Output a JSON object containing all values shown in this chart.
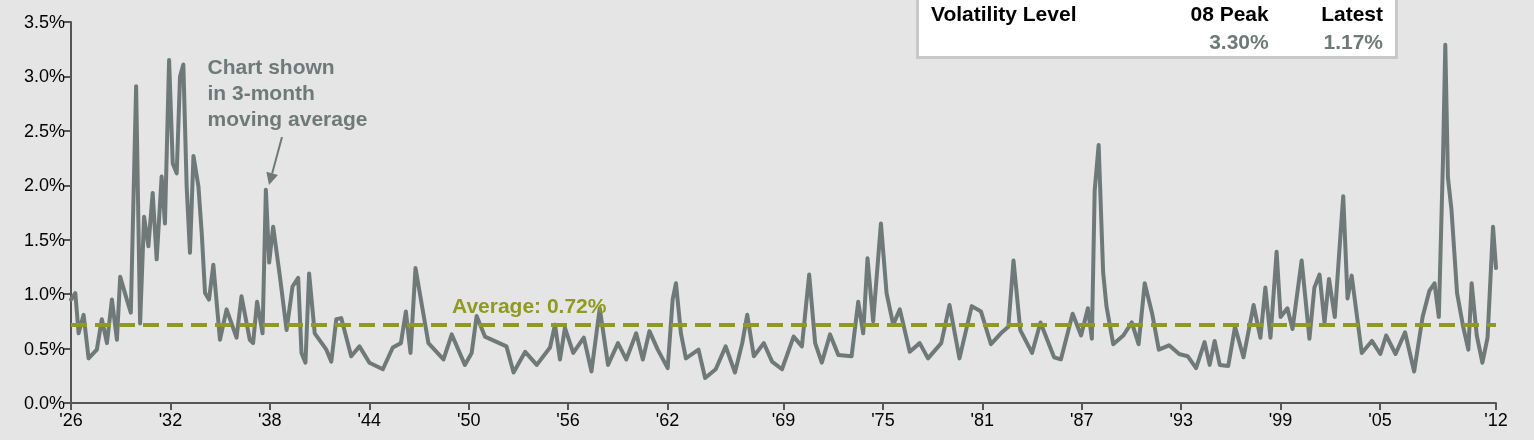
{
  "chart_data": {
    "type": "line",
    "x": [
      1926.0,
      1926.26,
      1926.46,
      1926.76,
      1927.06,
      1927.56,
      1927.86,
      1928.17,
      1928.47,
      1928.77,
      1928.97,
      1929.37,
      1929.61,
      1929.93,
      1930.17,
      1930.41,
      1930.67,
      1930.93,
      1931.17,
      1931.47,
      1931.67,
      1931.92,
      1932.14,
      1932.38,
      1932.58,
      1932.78,
      1932.98,
      1933.18,
      1933.39,
      1933.69,
      1933.89,
      1934.09,
      1934.33,
      1934.59,
      1934.99,
      1935.39,
      1935.99,
      1936.29,
      1936.79,
      1936.99,
      1937.23,
      1937.56,
      1937.76,
      1937.96,
      1938.2,
      1938.61,
      1939.01,
      1939.37,
      1939.71,
      1939.91,
      1940.15,
      1940.37,
      1940.71,
      1941.41,
      1941.71,
      1942.01,
      1942.31,
      1942.91,
      1943.41,
      1944.01,
      1944.82,
      1945.42,
      1945.91,
      1946.21,
      1946.49,
      1946.79,
      1947.57,
      1948.48,
      1948.98,
      1949.77,
      1950.18,
      1950.48,
      1950.98,
      1952.28,
      1952.71,
      1953.41,
      1954.11,
      1954.91,
      1955.21,
      1955.51,
      1955.81,
      1956.31,
      1956.95,
      1957.41,
      1957.91,
      1958.41,
      1959.01,
      1959.51,
      1960.11,
      1960.51,
      1960.91,
      1961.41,
      1962.01,
      1962.31,
      1962.51,
      1962.81,
      1963.11,
      1963.87,
      1964.27,
      1964.91,
      1965.51,
      1966.07,
      1966.51,
      1966.81,
      1967.21,
      1967.81,
      1968.31,
      1968.91,
      1969.61,
      1970.11,
      1970.55,
      1970.91,
      1971.31,
      1971.81,
      1972.31,
      1973.11,
      1973.51,
      1973.81,
      1974.07,
      1974.41,
      1974.88,
      1975.22,
      1975.62,
      1976.02,
      1976.62,
      1977.22,
      1977.72,
      1978.52,
      1979.02,
      1979.62,
      1980.36,
      1980.92,
      1981.52,
      1982.12,
      1982.57,
      1982.88,
      1983.29,
      1984.0,
      1984.51,
      1985.33,
      1985.74,
      1986.45,
      1986.96,
      1987.37,
      1987.61,
      1987.78,
      1988.02,
      1988.29,
      1988.49,
      1988.9,
      1989.51,
      1990.02,
      1990.43,
      1990.8,
      1991.25,
      1991.65,
      1992.27,
      1992.88,
      1993.39,
      1993.9,
      1994.41,
      1994.72,
      1995.02,
      1995.33,
      1995.84,
      1996.25,
      1996.76,
      1997.37,
      1997.78,
      1998.08,
      1998.39,
      1998.76,
      1999.0,
      1999.41,
      1999.72,
      2000.27,
      2000.74,
      2001.04,
      2001.35,
      2001.65,
      2001.92,
      2002.27,
      2002.57,
      2002.78,
      2003.04,
      2003.29,
      2003.9,
      2004.51,
      2005.02,
      2005.37,
      2005.94,
      2006.51,
      2007.06,
      2007.57,
      2007.98,
      2008.29,
      2008.55,
      2008.8,
      2008.94,
      2009.1,
      2009.31,
      2009.65,
      2010.02,
      2010.33,
      2010.53,
      2010.84,
      2011.18,
      2011.49,
      2011.82,
      2012.0
    ],
    "series": [
      {
        "color": "#6f7a78",
        "values": [
          0.95,
          1.01,
          0.64,
          0.81,
          0.41,
          0.49,
          0.77,
          0.55,
          0.95,
          0.58,
          1.16,
          0.95,
          0.83,
          2.91,
          0.73,
          1.71,
          1.44,
          1.93,
          1.32,
          2.08,
          1.65,
          3.15,
          2.2,
          2.11,
          3.0,
          3.11,
          1.99,
          1.38,
          2.27,
          1.99,
          1.56,
          1.01,
          0.95,
          1.27,
          0.58,
          0.86,
          0.6,
          0.98,
          0.58,
          0.55,
          0.93,
          0.64,
          1.96,
          1.29,
          1.62,
          1.16,
          0.67,
          1.07,
          1.15,
          0.46,
          0.37,
          1.19,
          0.64,
          0.49,
          0.38,
          0.77,
          0.78,
          0.43,
          0.52,
          0.37,
          0.31,
          0.51,
          0.55,
          0.84,
          0.46,
          1.24,
          0.55,
          0.4,
          0.63,
          0.35,
          0.46,
          0.8,
          0.61,
          0.52,
          0.28,
          0.47,
          0.35,
          0.51,
          0.72,
          0.4,
          0.69,
          0.46,
          0.6,
          0.29,
          0.87,
          0.35,
          0.55,
          0.4,
          0.64,
          0.4,
          0.66,
          0.49,
          0.32,
          0.95,
          1.1,
          0.64,
          0.41,
          0.49,
          0.23,
          0.31,
          0.52,
          0.28,
          0.55,
          0.81,
          0.43,
          0.55,
          0.38,
          0.31,
          0.61,
          0.52,
          1.18,
          0.55,
          0.37,
          0.63,
          0.44,
          0.43,
          0.93,
          0.64,
          1.33,
          0.75,
          1.65,
          1.01,
          0.72,
          0.86,
          0.47,
          0.55,
          0.41,
          0.55,
          0.9,
          0.41,
          0.89,
          0.84,
          0.54,
          0.64,
          0.7,
          1.31,
          0.67,
          0.46,
          0.74,
          0.42,
          0.4,
          0.82,
          0.62,
          0.87,
          0.59,
          1.95,
          2.37,
          1.2,
          0.89,
          0.54,
          0.62,
          0.74,
          0.54,
          1.1,
          0.82,
          0.49,
          0.53,
          0.45,
          0.43,
          0.32,
          0.56,
          0.35,
          0.57,
          0.35,
          0.34,
          0.7,
          0.42,
          0.9,
          0.6,
          1.06,
          0.6,
          1.39,
          0.79,
          0.87,
          0.68,
          1.31,
          0.59,
          1.06,
          1.18,
          0.74,
          1.14,
          0.79,
          1.45,
          1.9,
          0.96,
          1.17,
          0.46,
          0.57,
          0.45,
          0.62,
          0.45,
          0.65,
          0.29,
          0.79,
          1.03,
          1.1,
          0.79,
          2.23,
          3.29,
          2.07,
          1.78,
          1.01,
          0.7,
          0.49,
          1.1,
          0.62,
          0.37,
          0.6,
          1.62,
          1.24
        ]
      }
    ],
    "xlim": [
      1926,
      2012
    ],
    "xticks": [
      {
        "value": 1926,
        "label": "'26"
      },
      {
        "value": 1932,
        "label": "'32"
      },
      {
        "value": 1938,
        "label": "'38"
      },
      {
        "value": 1944,
        "label": "'44"
      },
      {
        "value": 1950,
        "label": "'50"
      },
      {
        "value": 1956,
        "label": "'56"
      },
      {
        "value": 1962,
        "label": "'62"
      },
      {
        "value": 1969,
        "label": "'69"
      },
      {
        "value": 1975,
        "label": "'75"
      },
      {
        "value": 1981,
        "label": "'81"
      },
      {
        "value": 1987,
        "label": "'87"
      },
      {
        "value": 1993,
        "label": "'93"
      },
      {
        "value": 1999,
        "label": "'99"
      },
      {
        "value": 2005,
        "label": "'05"
      },
      {
        "value": 2012,
        "label": "'12"
      }
    ],
    "ylim": [
      0,
      3.5
    ],
    "yticks": [
      {
        "value": 0,
        "label": "0.0%"
      },
      {
        "value": 0.5,
        "label": "0.5%"
      },
      {
        "value": 1,
        "label": "1.0%"
      },
      {
        "value": 1.5,
        "label": "1.5%"
      },
      {
        "value": 2,
        "label": "2.0%"
      },
      {
        "value": 2.5,
        "label": "2.5%"
      },
      {
        "value": 3,
        "label": "3.0%"
      },
      {
        "value": 3.5,
        "label": "3.5%"
      }
    ],
    "ref_lines": [
      {
        "axis": "y",
        "value": 0.72,
        "label": "Average: 0.72%",
        "color": "#8f9a1e",
        "line_style": "dashed"
      }
    ],
    "annotations": [
      {
        "text": "Chart shown\nin 3-month\nmoving average",
        "x": 1937.8,
        "y": 1.97
      },
      "Volatility Level",
      "08 Peak",
      "Latest",
      "3.30%",
      "1.17%"
    ],
    "grid": false,
    "marker": "none",
    "line_style": "solid"
  }
}
